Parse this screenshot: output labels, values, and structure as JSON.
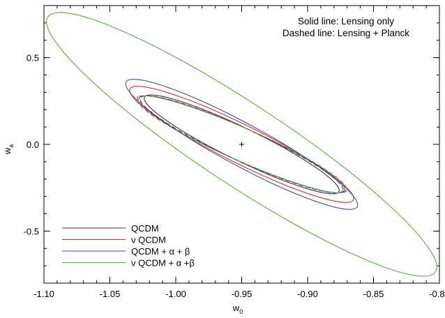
{
  "chart_data": {
    "type": "line",
    "x_axis": {
      "range": [
        -1.1,
        -0.8
      ],
      "ticks": [
        -1.1,
        -1.05,
        -1.0,
        -0.95,
        -0.9,
        -0.85,
        -0.8
      ],
      "tick_labels": [
        "-1.10",
        "-1.05",
        "-1.00",
        "-0.95",
        "-0.90",
        "-0.85",
        "-0.80"
      ],
      "label_main": "w",
      "label_sub": "0"
    },
    "y_axis": {
      "range": [
        -0.8,
        0.8
      ],
      "ticks": [
        -0.5,
        0.0,
        0.5
      ],
      "tick_labels": [
        "-0.5",
        "0.0",
        "0.5"
      ],
      "label_main": "w",
      "label_sub": "a"
    },
    "annotation": {
      "line1": "Solid line: Lensing only",
      "line2": "Dashed line: Lensing + Planck"
    },
    "fiducial": {
      "x": -0.95,
      "y": 0.0
    },
    "legend": {
      "position": "bottom-left",
      "entries": [
        {
          "label": "QCDM",
          "color": "#3a3a3a"
        },
        {
          "label": "ν QCDM",
          "color": "#e8262a"
        },
        {
          "label": "QCDM + α + β",
          "color": "#3a4fc0"
        },
        {
          "label": "ν QCDM + α +β",
          "color": "#4db72e"
        }
      ]
    },
    "series": [
      {
        "name": "QCDM",
        "style": "solid",
        "color": "#3a3a3a",
        "ellipse": {
          "center": [
            -0.95,
            0.0
          ],
          "extent_w0": [
            -1.024,
            -0.876
          ],
          "extent_wa": [
            -0.285,
            0.285
          ]
        }
      },
      {
        "name": "ν QCDM",
        "style": "solid",
        "color": "#e8262a",
        "ellipse": {
          "center": [
            -0.95,
            0.0
          ],
          "extent_w0": [
            -1.035,
            -0.865
          ],
          "extent_wa": [
            -0.335,
            0.335
          ]
        }
      },
      {
        "name": "QCDM + α + β",
        "style": "solid",
        "color": "#3a4fc0",
        "ellipse": {
          "center": [
            -0.95,
            0.0
          ],
          "extent_w0": [
            -1.038,
            -0.862
          ],
          "extent_wa": [
            -0.375,
            0.375
          ]
        }
      },
      {
        "name": "ν QCDM + α +β",
        "style": "solid",
        "color": "#4db72e",
        "ellipse": {
          "center": [
            -0.95,
            0.0
          ],
          "extent_w0": [
            -1.098,
            -0.802
          ],
          "extent_wa": [
            -0.76,
            0.76
          ]
        }
      },
      {
        "name": "QCDM",
        "style": "dashed",
        "color": "#3a3a3a",
        "ellipse": {
          "center": [
            -0.95,
            0.0
          ],
          "extent_w0": [
            -1.027,
            -0.873
          ],
          "extent_wa": [
            -0.28,
            0.28
          ]
        }
      },
      {
        "name": "ν QCDM",
        "style": "dashed",
        "color": "#e8262a",
        "ellipse": {
          "center": [
            -0.95,
            0.0
          ],
          "extent_w0": [
            -1.029,
            -0.871
          ],
          "extent_wa": [
            -0.28,
            0.28
          ]
        }
      },
      {
        "name": "QCDM + α + β",
        "style": "dashed",
        "color": "#3a4fc0",
        "ellipse": {
          "center": [
            -0.95,
            0.0
          ],
          "extent_w0": [
            -1.028,
            -0.872
          ],
          "extent_wa": [
            -0.28,
            0.28
          ]
        }
      },
      {
        "name": "ν QCDM + α +β",
        "style": "dashed",
        "color": "#4db72e",
        "ellipse": {
          "center": [
            -0.95,
            0.0
          ],
          "extent_w0": [
            -1.03,
            -0.87
          ],
          "extent_wa": [
            -0.28,
            0.28
          ]
        }
      }
    ]
  }
}
